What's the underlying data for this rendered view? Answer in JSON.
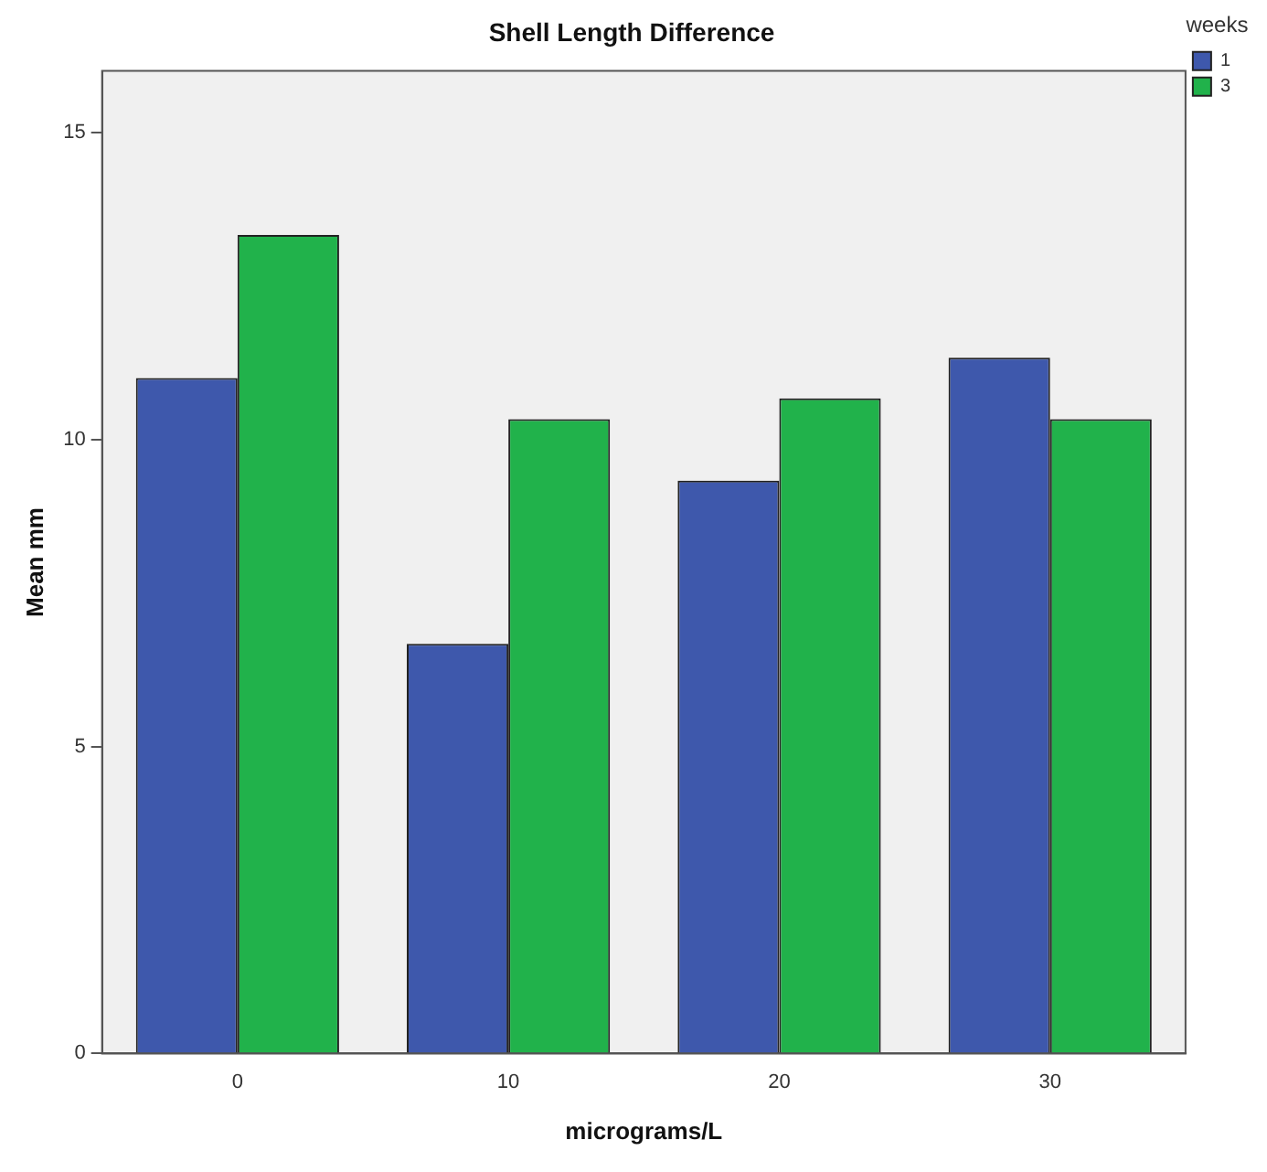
{
  "chart_data": {
    "type": "bar",
    "title": "Shell Length Difference",
    "xlabel": "micrograms/L",
    "ylabel": "Mean mm",
    "legend_title": "weeks",
    "categories": [
      "0",
      "10",
      "20",
      "30"
    ],
    "series": [
      {
        "name": "1",
        "color": "#3e58ac",
        "values": [
          11.0,
          6.67,
          9.33,
          11.33
        ]
      },
      {
        "name": "3",
        "color": "#21b24b",
        "values": [
          13.33,
          10.33,
          10.67,
          10.33
        ]
      }
    ],
    "ylim": [
      0,
      16
    ],
    "yticks": [
      0,
      5,
      10,
      15
    ],
    "grid": false,
    "legend": "top right"
  }
}
